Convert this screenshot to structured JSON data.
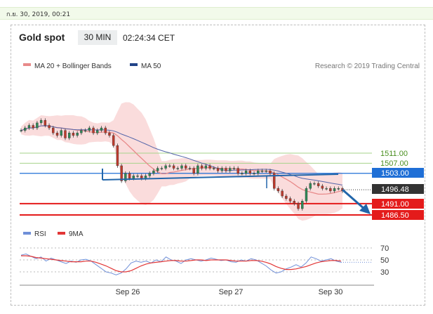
{
  "topbar": {
    "datetime": "ก.ย. 30, 2019, 00:21"
  },
  "header": {
    "title": "Gold spot",
    "timeframe": "30 MIN",
    "time": "02:24:34 CET"
  },
  "legend": {
    "ma20_label": "MA 20 + Bollinger Bands",
    "ma50_label": "MA 50",
    "rsi_label": "RSI",
    "ma9_label": "9MA",
    "credit": "Research © 2019 Trading Central"
  },
  "colors": {
    "up_candle": "#2e8b57",
    "down_candle": "#c0392b",
    "ma20": "#e88a8a",
    "bollinger": "#f9d6d6",
    "ma50": "#5566aa",
    "green_level": "#5fa832",
    "blue_level": "#1f6fd6",
    "red_level": "#e41b1b",
    "current": "#333333",
    "rsi": "#6f8fd8",
    "ma9": "#e23636",
    "arrow": "#2266aa"
  },
  "chart_data": [
    {
      "type": "candlestick",
      "title": "Gold spot",
      "x_ticks": [
        "Sep 26",
        "Sep 27",
        "Sep 30"
      ],
      "ylim": [
        1484,
        1533
      ],
      "close_series": [
        1520,
        1521,
        1522,
        1521,
        1523,
        1524,
        1522,
        1521,
        1519,
        1518,
        1520,
        1517,
        1519,
        1518,
        1519,
        1520,
        1520,
        1521,
        1519,
        1520,
        1521,
        1519,
        1518,
        1514,
        1506,
        1500,
        1503,
        1501,
        1502,
        1502,
        1501,
        1502,
        1503,
        1504,
        1505,
        1505,
        1506,
        1506,
        1505,
        1505,
        1506,
        1505,
        1505,
        1503,
        1506,
        1505,
        1506,
        1505,
        1505,
        1504,
        1505,
        1504,
        1505,
        1505,
        1503,
        1503,
        1504,
        1503,
        1503,
        1504,
        1504,
        1504,
        1503,
        1497,
        1496,
        1494,
        1493,
        1492,
        1491,
        1489,
        1492,
        1497,
        1499,
        1499,
        1498,
        1497,
        1497,
        1496,
        1497,
        1497,
        1496
      ],
      "levels": {
        "resistance": [
          {
            "label": "1511.00",
            "value": 1511.0
          },
          {
            "label": "1507.00",
            "value": 1507.0
          },
          {
            "label": "1503.00",
            "value": 1503.0
          }
        ],
        "current": {
          "label": "1496.48",
          "value": 1496.48
        },
        "support": [
          {
            "label": "1491.00",
            "value": 1491.0
          },
          {
            "label": "1486.50",
            "value": 1486.5
          }
        ]
      }
    },
    {
      "type": "line",
      "name": "RSI",
      "y_ticks": [
        "70",
        "50",
        "30"
      ],
      "ylim": [
        20,
        80
      ],
      "rsi": [
        58,
        60,
        56,
        52,
        55,
        48,
        53,
        50,
        47,
        44,
        48,
        46,
        50,
        51,
        48,
        42,
        36,
        30,
        28,
        25,
        28,
        35,
        45,
        48,
        46,
        48,
        45,
        50,
        47,
        55,
        50,
        48,
        44,
        50,
        52,
        50,
        48,
        50,
        53,
        51,
        49,
        50,
        47,
        46,
        50,
        48,
        52,
        50,
        45,
        40,
        33,
        28,
        30,
        35,
        38,
        42,
        38,
        45,
        55,
        52,
        48,
        50,
        52,
        48,
        46
      ],
      "ma9": [
        57,
        57,
        56,
        54,
        53,
        52,
        51,
        50,
        49,
        48,
        47,
        47,
        47,
        48,
        48,
        46,
        43,
        40,
        36,
        32,
        30,
        30,
        32,
        36,
        40,
        43,
        45,
        46,
        47,
        48,
        49,
        49,
        48,
        48,
        49,
        50,
        50,
        49,
        50,
        50,
        50,
        50,
        49,
        48,
        48,
        48,
        49,
        49,
        48,
        46,
        43,
        39,
        36,
        34,
        34,
        35,
        37,
        39,
        42,
        45,
        47,
        48,
        49,
        49,
        48
      ]
    }
  ]
}
